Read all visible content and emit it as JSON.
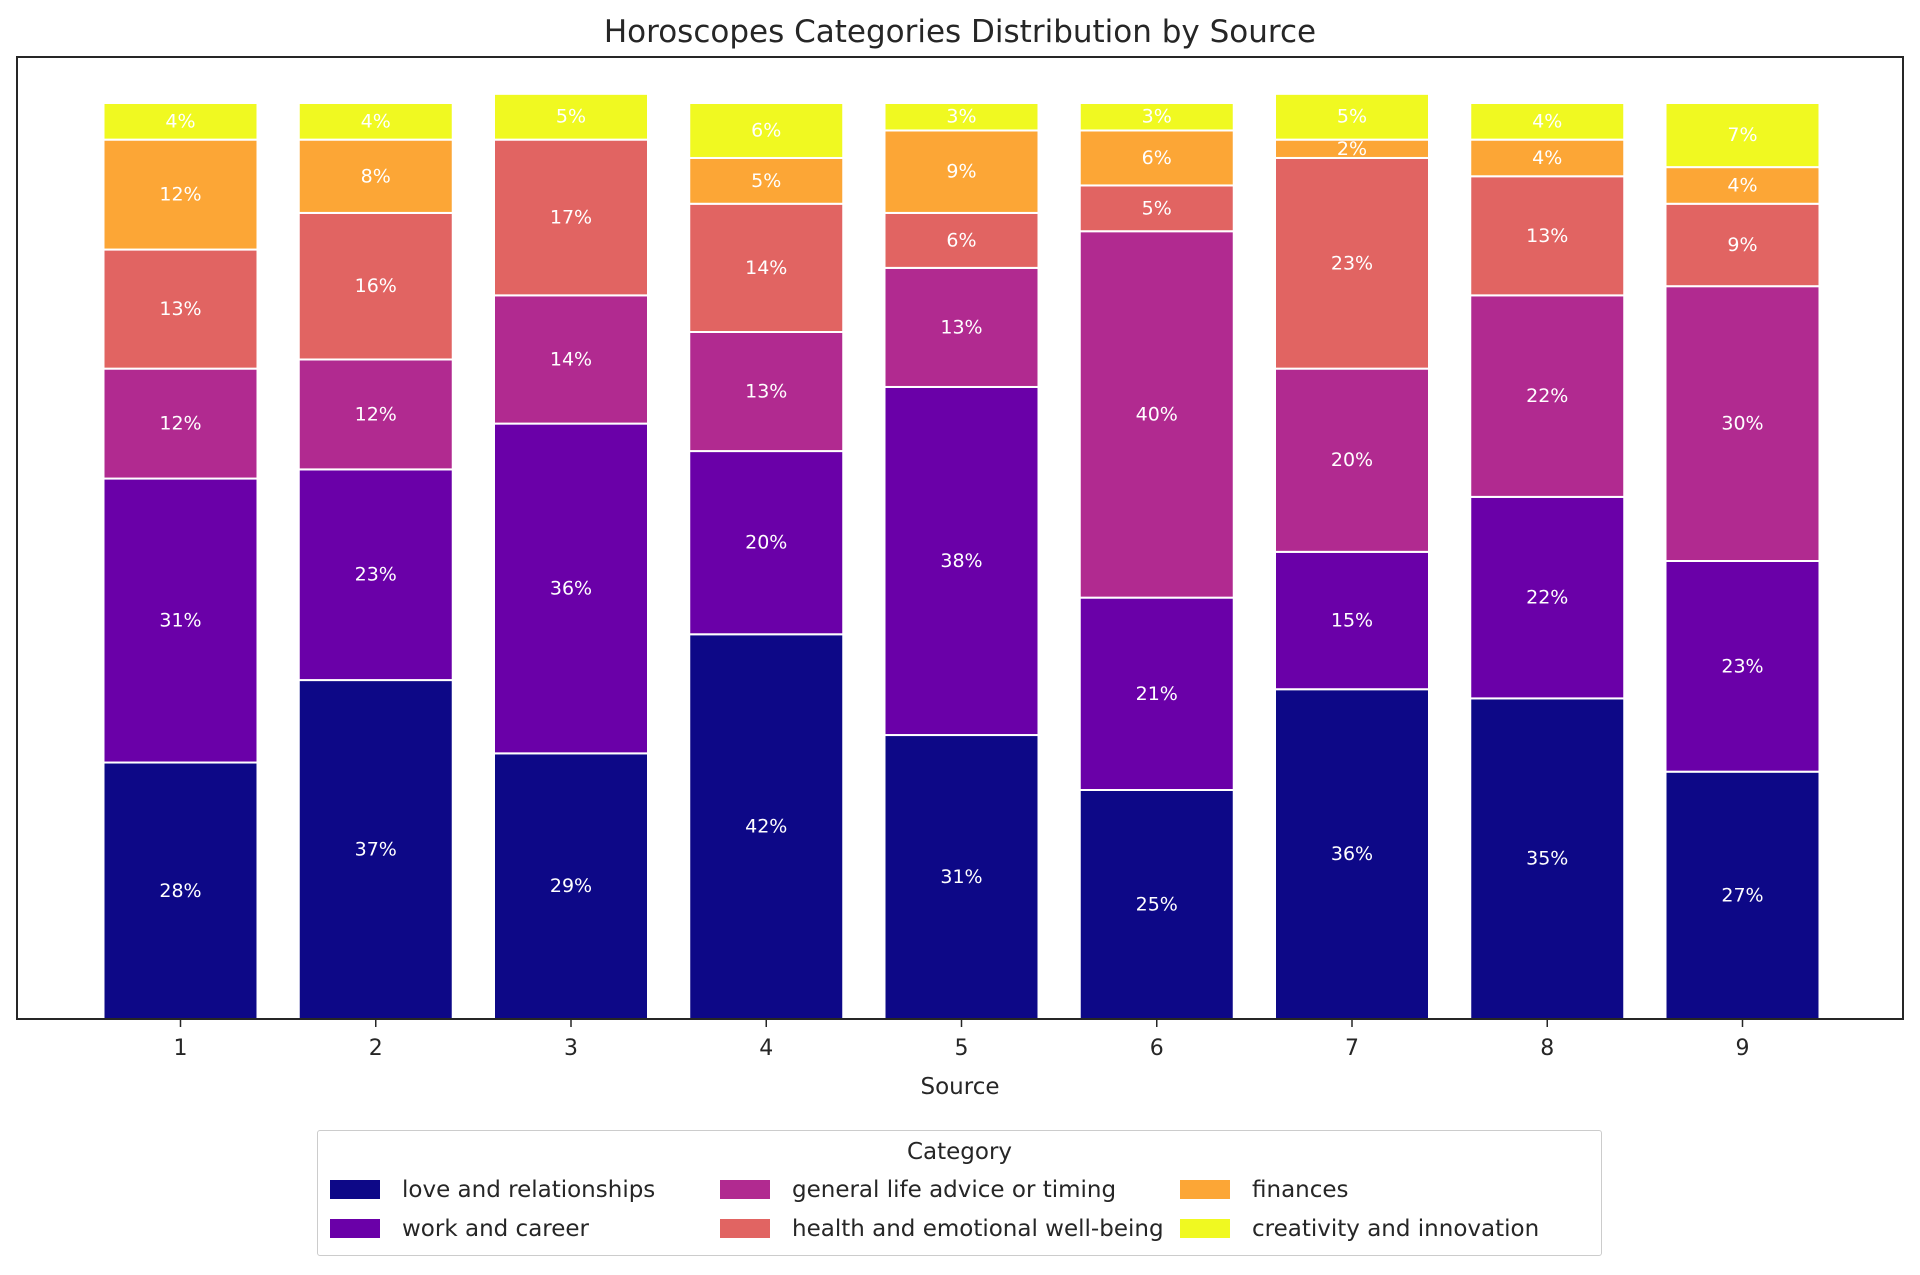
{
  "chart_data": {
    "type": "bar",
    "stacked": true,
    "title": "Horoscopes Categories Distribution by Source",
    "xlabel": "Source",
    "ylabel": "",
    "categories": [
      "1",
      "2",
      "3",
      "4",
      "5",
      "6",
      "7",
      "8",
      "9"
    ],
    "ylim": [
      0,
      100
    ],
    "legend_title": "Category",
    "legend_position": "bottom-center",
    "series": [
      {
        "name": "love and relationships",
        "color": "#0d0887",
        "values": [
          28,
          37,
          29,
          42,
          31,
          25,
          36,
          35,
          27
        ]
      },
      {
        "name": "work and career",
        "color": "#6a00a8",
        "values": [
          31,
          23,
          36,
          20,
          38,
          21,
          15,
          22,
          23
        ]
      },
      {
        "name": "general life advice or timing",
        "color": "#b12a90",
        "values": [
          12,
          12,
          14,
          13,
          13,
          40,
          20,
          22,
          30
        ]
      },
      {
        "name": "health and emotional well-being",
        "color": "#e16462",
        "values": [
          13,
          16,
          17,
          14,
          6,
          5,
          23,
          13,
          9
        ]
      },
      {
        "name": "finances",
        "color": "#fca636",
        "values": [
          12,
          8,
          0,
          5,
          9,
          6,
          2,
          4,
          4
        ]
      },
      {
        "name": "creativity and innovation",
        "color": "#f0f921",
        "values": [
          4,
          4,
          5,
          6,
          3,
          3,
          5,
          4,
          7
        ]
      }
    ],
    "labels": [
      [
        "28%",
        "37%",
        "29%",
        "42%",
        "31%",
        "25%",
        "36%",
        "35%",
        "27%"
      ],
      [
        "31%",
        "23%",
        "36%",
        "20%",
        "38%",
        "21%",
        "15%",
        "22%",
        "23%"
      ],
      [
        "12%",
        "12%",
        "14%",
        "13%",
        "13%",
        "40%",
        "20%",
        "22%",
        "30%"
      ],
      [
        "13%",
        "16%",
        "17%",
        "14%",
        "6%",
        "5%",
        "23%",
        "13%",
        "9%"
      ],
      [
        "12%",
        "8%",
        "",
        "5%",
        "9%",
        "6%",
        "2%",
        "4%",
        "4%"
      ],
      [
        "4%",
        "4%",
        "5%",
        "6%",
        "3%",
        "3%",
        "5%",
        "4%",
        "7%"
      ]
    ]
  }
}
